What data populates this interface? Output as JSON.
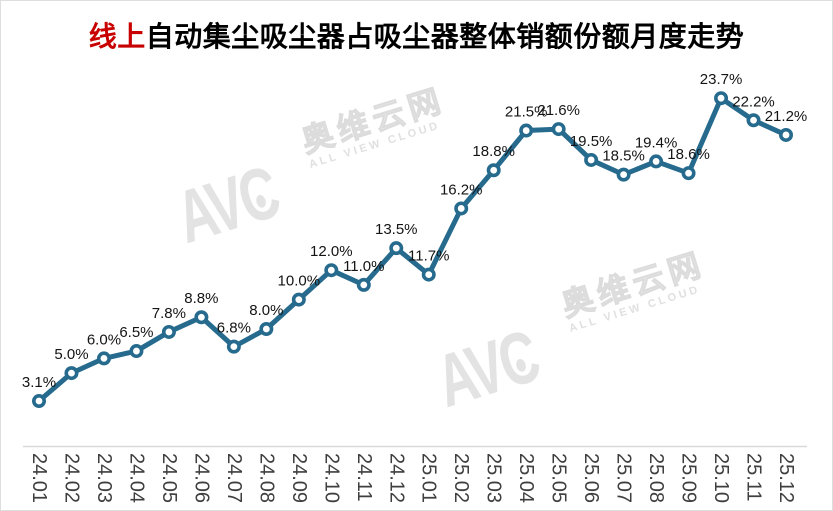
{
  "chart": {
    "title": {
      "highlight": "线上",
      "rest": "自动集尘吸尘器占吸尘器整体销额份额月度走势"
    }
  },
  "watermark": {
    "logo": "AVC",
    "cn": "奥维云网",
    "en": "ALL VIEW CLOUD"
  },
  "colors": {
    "line": "#266b8e",
    "marker_fill": "#ffffff",
    "title_highlight": "#c80000",
    "axis_line": "#d9d9d9",
    "data_label": "#141414",
    "tick_label": "#3f3f3f",
    "watermark": "#e3e3e3"
  },
  "chart_data": {
    "type": "line",
    "title": "线上自动集尘吸尘器占吸尘器整体销额份额月度走势",
    "categories": [
      "24.01",
      "24.02",
      "24.03",
      "24.04",
      "24.05",
      "24.06",
      "24.07",
      "24.08",
      "24.09",
      "24.10",
      "24.11",
      "24.12",
      "25.01",
      "25.02",
      "25.03",
      "25.04",
      "25.05",
      "25.06",
      "25.07",
      "25.08",
      "25.09",
      "25.10",
      "25.11",
      "25.12"
    ],
    "values": [
      3.1,
      5.0,
      6.0,
      6.5,
      7.8,
      8.8,
      6.8,
      8.0,
      10.0,
      12.0,
      11.0,
      13.5,
      11.7,
      16.2,
      18.8,
      21.5,
      21.6,
      19.5,
      18.5,
      19.4,
      18.6,
      23.7,
      22.2,
      21.2
    ],
    "unit": "%",
    "label_format": "{value}%",
    "xlabel": "",
    "ylabel": "",
    "ylim": [
      0,
      27
    ],
    "grid": false,
    "legend": "none",
    "data_labels": "above-points",
    "x_tick_rotation_deg": 90
  }
}
